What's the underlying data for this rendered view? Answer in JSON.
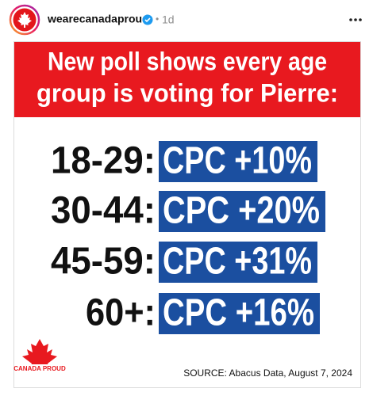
{
  "header": {
    "username": "wearecanadaproud",
    "separator": "•",
    "time": "1d"
  },
  "post": {
    "title_lines": [
      "New poll shows every age",
      "group is voting for Pierre:"
    ],
    "rows": [
      {
        "age": "18-29:",
        "result": "CPC +10%"
      },
      {
        "age": "30-44:",
        "result": "CPC +20%"
      },
      {
        "age": "45-59:",
        "result": "CPC +31%"
      },
      {
        "age": "60+:",
        "result": "CPC +16%"
      }
    ],
    "logo": "CANADA PROUD",
    "source": "SOURCE: Abacus Data, August 7, 2024"
  }
}
